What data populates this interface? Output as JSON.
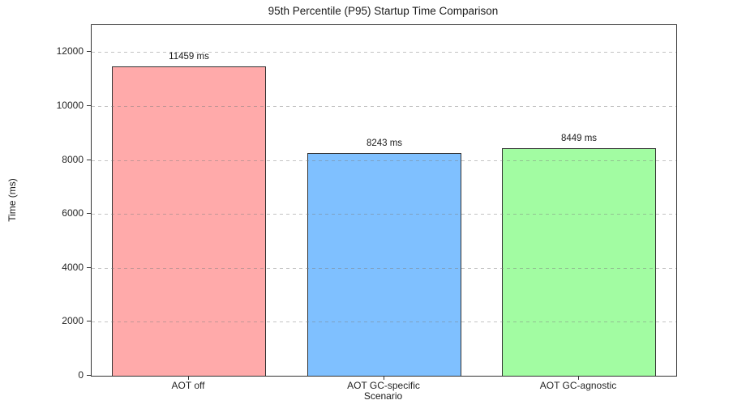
{
  "chart_data": {
    "type": "bar",
    "title": "95th Percentile (P95) Startup Time Comparison",
    "xlabel": "Scenario",
    "ylabel": "Time (ms)",
    "categories": [
      "AOT off",
      "AOT GC-specific",
      "AOT GC-agnostic"
    ],
    "values": [
      11459,
      8243,
      8449
    ],
    "value_labels": [
      "11459 ms",
      "8243 ms",
      "8449 ms"
    ],
    "unit": "ms",
    "bar_colors": [
      "#ffaaaa",
      "#7fc0ff",
      "#a2fca2"
    ],
    "bar_edge_color": "#333333",
    "ylim": [
      0,
      13000
    ],
    "yticks": [
      0,
      2000,
      4000,
      6000,
      8000,
      10000,
      12000
    ],
    "ytick_labels": [
      "0",
      "2000",
      "4000",
      "6000",
      "8000",
      "10000",
      "12000"
    ],
    "grid": "horizontal dashed",
    "gridline_color": "#cccccc",
    "legend": "none",
    "background_color": "#ffffff"
  }
}
